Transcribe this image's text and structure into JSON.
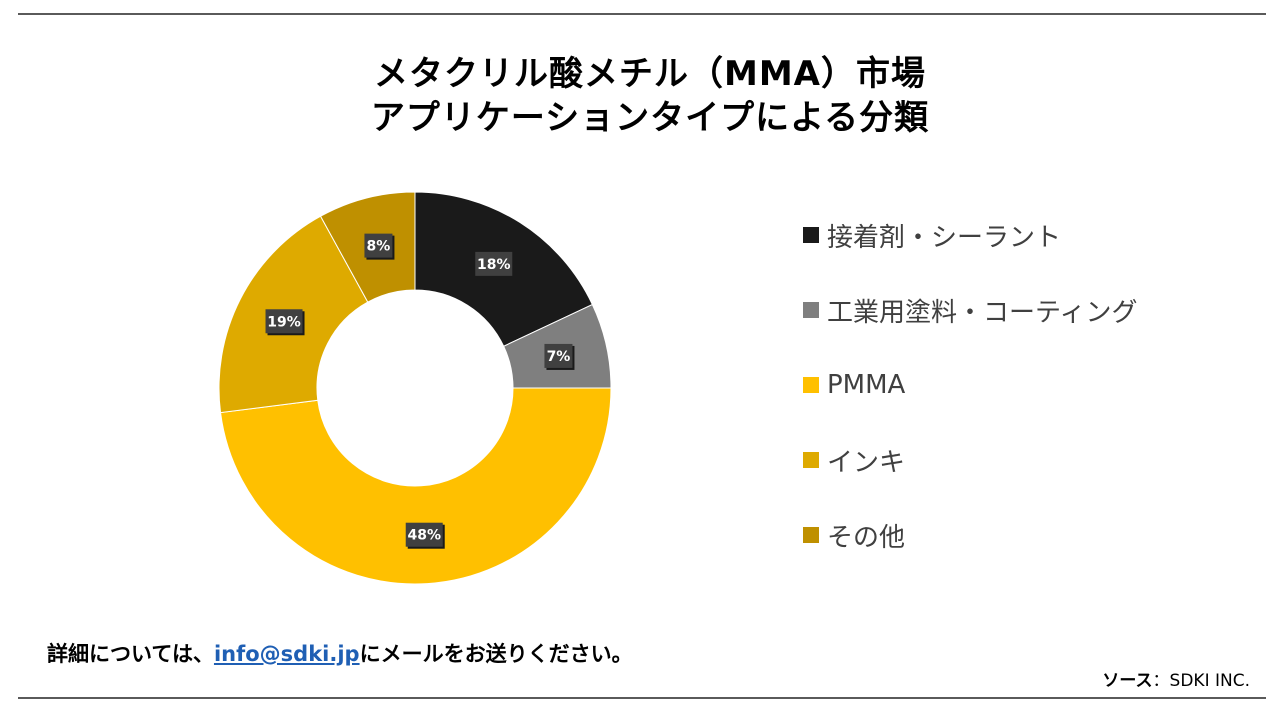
{
  "title_line1": "メタクリル酸メチル（MMA）市場",
  "title_line2": "アプリケーションタイプによる分類",
  "chart_data": {
    "type": "pie",
    "donut": true,
    "categories": [
      "接着剤・シーラント",
      "工業用塗料・コーティング",
      "PMMA",
      "インキ",
      "その他"
    ],
    "values": [
      18,
      7,
      48,
      19,
      8
    ],
    "labels": [
      "18%",
      "7%",
      "48%",
      "19%",
      "8%"
    ],
    "colors": [
      "#1a1a1a",
      "#7f7f7f",
      "#ffc000",
      "#deaa00",
      "#bf9000"
    ],
    "legend_position": "right"
  },
  "footer": {
    "prefix": "詳細については、",
    "email": "info@sdki.jp",
    "suffix": "にメールをお送りください。"
  },
  "source": {
    "label": "ソース",
    "value": "：SDKI INC."
  }
}
